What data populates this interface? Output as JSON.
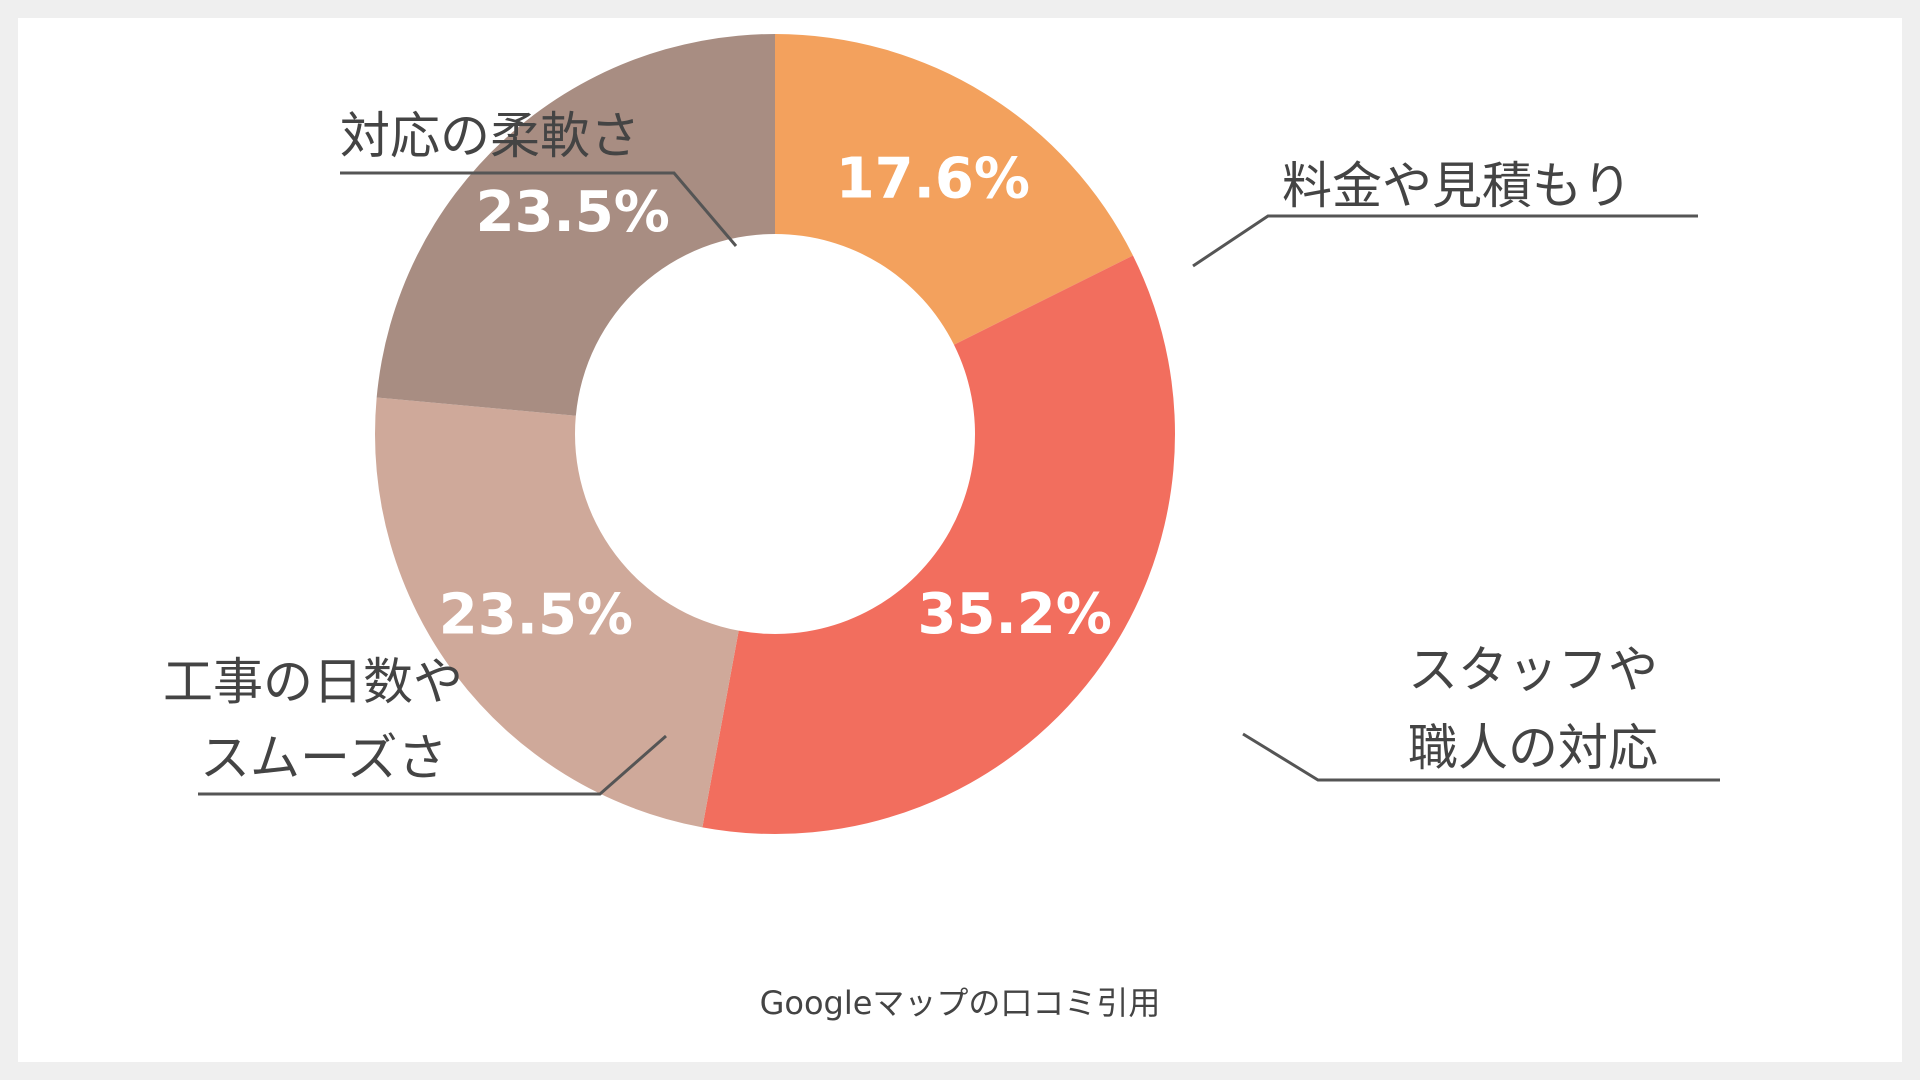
{
  "chart_data": {
    "type": "pie",
    "donut": true,
    "categories": [
      "料金や見積もり",
      "スタッフや職人の対応",
      "工事の日数やスムーズさ",
      "対応の柔軟さ"
    ],
    "values": [
      17.6,
      35.2,
      23.5,
      23.5
    ],
    "value_labels": [
      "17.6%",
      "35.2%",
      "23.5%",
      "23.5%"
    ],
    "label_lines": [
      [
        "料金や見積もり"
      ],
      [
        "スタッフや",
        "職人の対応"
      ],
      [
        "工事の日数や",
        "スムーズさ"
      ],
      [
        "対応の柔軟さ"
      ]
    ],
    "colors": [
      "#F3A15D",
      "#F26E5E",
      "#CFA99A",
      "#A88D82"
    ],
    "start_angle": "top",
    "direction": "clockwise",
    "legend": "none"
  },
  "caption": "Googleマップの口コミ引用"
}
